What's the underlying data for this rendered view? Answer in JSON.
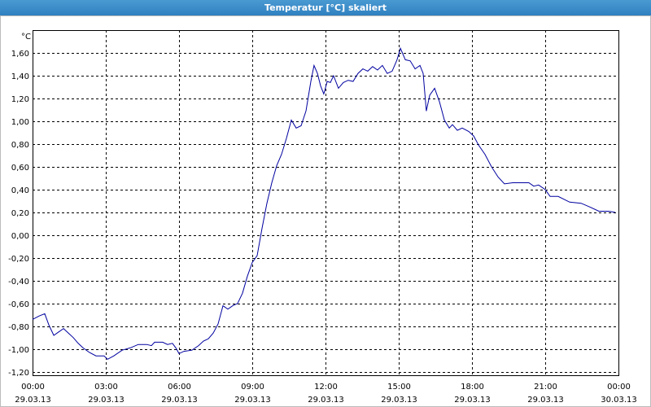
{
  "chart_data": {
    "type": "line",
    "title": "Temperatur [°C] skaliert",
    "unit": "°C",
    "x": [
      0,
      0.27,
      0.5,
      0.67,
      0.87,
      1.07,
      1.27,
      1.47,
      1.67,
      1.87,
      2.07,
      2.33,
      2.6,
      2.93,
      3.07,
      3.33,
      3.67,
      4,
      4.33,
      4.67,
      4.87,
      5,
      5.33,
      5.53,
      5.73,
      5.87,
      6,
      6.2,
      6.53,
      6.8,
      7,
      7.2,
      7.4,
      7.6,
      7.8,
      8,
      8.2,
      8.4,
      8.6,
      8.8,
      9,
      9.2,
      9.4,
      9.6,
      9.8,
      10,
      10.2,
      10.4,
      10.6,
      10.8,
      11,
      11.2,
      11.4,
      11.53,
      11.67,
      11.8,
      11.93,
      12.07,
      12.2,
      12.33,
      12.53,
      12.73,
      12.93,
      13.13,
      13.33,
      13.53,
      13.73,
      13.93,
      14.13,
      14.33,
      14.53,
      14.73,
      14.93,
      15.07,
      15.27,
      15.47,
      15.67,
      15.87,
      16,
      16.13,
      16.27,
      16.47,
      16.67,
      16.87,
      17.07,
      17.2,
      17.4,
      17.6,
      17.87,
      18.07,
      18.27,
      18.53,
      18.8,
      19.07,
      19.33,
      19.67,
      20,
      20.33,
      20.53,
      20.73,
      21,
      21.2,
      21.53,
      22,
      22.47,
      22.8,
      23.2,
      23.6,
      23.87
    ],
    "series": [
      {
        "name": "Temperatur",
        "color": "#0000a0",
        "values": [
          -0.74,
          -0.71,
          -0.69,
          -0.79,
          -0.88,
          -0.85,
          -0.82,
          -0.86,
          -0.9,
          -0.95,
          -0.99,
          -1.03,
          -1.06,
          -1.06,
          -1.09,
          -1.06,
          -1.01,
          -0.99,
          -0.96,
          -0.96,
          -0.97,
          -0.94,
          -0.94,
          -0.96,
          -0.95,
          -0.99,
          -1.04,
          -1.02,
          -1.01,
          -0.97,
          -0.93,
          -0.91,
          -0.86,
          -0.78,
          -0.62,
          -0.65,
          -0.62,
          -0.6,
          -0.51,
          -0.36,
          -0.24,
          -0.18,
          0.06,
          0.28,
          0.46,
          0.61,
          0.71,
          0.85,
          1.01,
          0.94,
          0.96,
          1.09,
          1.35,
          1.49,
          1.42,
          1.31,
          1.24,
          1.35,
          1.34,
          1.4,
          1.29,
          1.34,
          1.36,
          1.35,
          1.42,
          1.46,
          1.44,
          1.48,
          1.45,
          1.49,
          1.42,
          1.44,
          1.54,
          1.64,
          1.54,
          1.53,
          1.46,
          1.49,
          1.42,
          1.09,
          1.23,
          1.29,
          1.17,
          1.01,
          0.94,
          0.97,
          0.92,
          0.94,
          0.91,
          0.87,
          0.79,
          0.71,
          0.6,
          0.51,
          0.45,
          0.46,
          0.46,
          0.46,
          0.43,
          0.44,
          0.4,
          0.34,
          0.34,
          0.29,
          0.28,
          0.25,
          0.21,
          0.21,
          0.2
        ]
      }
    ],
    "xlim": [
      0,
      24
    ],
    "xticks": [
      {
        "value": 0,
        "label": "00:00",
        "date": "29.03.13"
      },
      {
        "value": 3,
        "label": "03:00",
        "date": "29.03.13"
      },
      {
        "value": 6,
        "label": "06:00",
        "date": "29.03.13"
      },
      {
        "value": 9,
        "label": "09:00",
        "date": "29.03.13"
      },
      {
        "value": 12,
        "label": "12:00",
        "date": "29.03.13"
      },
      {
        "value": 15,
        "label": "15:00",
        "date": "29.03.13"
      },
      {
        "value": 18,
        "label": "18:00",
        "date": "29.03.13"
      },
      {
        "value": 21,
        "label": "21:00",
        "date": "29.03.13"
      },
      {
        "value": 24,
        "label": "00:00",
        "date": "30.03.13"
      }
    ],
    "ylim": [
      -1.23,
      1.8
    ],
    "yticks": [
      {
        "value": -1.2,
        "label": "-1,20"
      },
      {
        "value": -1,
        "label": "-1,00"
      },
      {
        "value": -0.8,
        "label": "-0,80"
      },
      {
        "value": -0.6,
        "label": "-0,60"
      },
      {
        "value": -0.4,
        "label": "-0,40"
      },
      {
        "value": -0.2,
        "label": "-0,20"
      },
      {
        "value": 0,
        "label": "0,00"
      },
      {
        "value": 0.2,
        "label": "0,20"
      },
      {
        "value": 0.4,
        "label": "0,40"
      },
      {
        "value": 0.6,
        "label": "0,60"
      },
      {
        "value": 0.8,
        "label": "0,80"
      },
      {
        "value": 1,
        "label": "1,00"
      },
      {
        "value": 1.2,
        "label": "1,20"
      },
      {
        "value": 1.4,
        "label": "1,40"
      },
      {
        "value": 1.6,
        "label": "1,60"
      }
    ],
    "grid": true
  }
}
